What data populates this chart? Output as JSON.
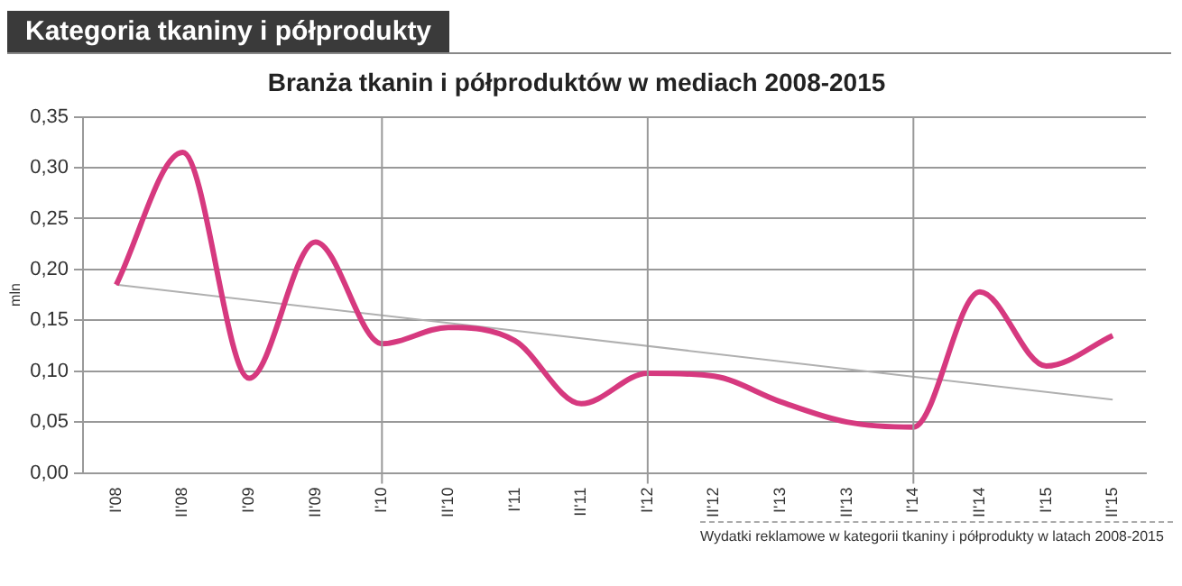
{
  "chart_data": {
    "type": "line",
    "title": "Kategoria tkaniny i półprodukty",
    "subtitle": "Branża tkanin i półproduktów w mediach 2008-2015",
    "ylabel": "mln",
    "categories": [
      "I'08",
      "II'08",
      "I'09",
      "II'09",
      "I'10",
      "II'10",
      "I'11",
      "II'11",
      "I'12",
      "II'12",
      "I'13",
      "II'13",
      "I'14",
      "II'14",
      "I'15",
      "II'15"
    ],
    "series": [
      {
        "color": "#d6397f",
        "values": [
          0.185,
          0.315,
          0.093,
          0.227,
          0.127,
          0.143,
          0.13,
          0.068,
          0.098,
          0.095,
          0.07,
          0.05,
          0.045,
          0.178,
          0.105,
          0.135
        ]
      },
      {
        "type": "line",
        "color": "#b0b0b0",
        "x": [
          "I'08",
          "II'15"
        ],
        "values": [
          0.185,
          0.072
        ]
      }
    ],
    "ylim": [
      0,
      0.35
    ],
    "yticks": [
      {
        "value": 0,
        "label": "0,00"
      },
      {
        "value": 0.05,
        "label": "0,05"
      },
      {
        "value": 0.1,
        "label": "0,10"
      },
      {
        "value": 0.15,
        "label": "0,15"
      },
      {
        "value": 0.2,
        "label": "0,20"
      },
      {
        "value": 0.25,
        "label": "0,25"
      },
      {
        "value": 0.3,
        "label": "0,30"
      },
      {
        "value": 0.35,
        "label": "0,35"
      }
    ],
    "grid": "y",
    "legend": false,
    "marker": "none",
    "ref_lines": [
      {
        "axis": "x",
        "value": "I'10",
        "color": "#999999"
      },
      {
        "axis": "x",
        "value": "I'12",
        "color": "#999999"
      },
      {
        "axis": "x",
        "value": "I'14",
        "color": "#999999"
      }
    ],
    "annotations": [
      "Wydatki reklamowe w kategorii tkaniny i półprodukty w latach 2008-2015"
    ]
  }
}
